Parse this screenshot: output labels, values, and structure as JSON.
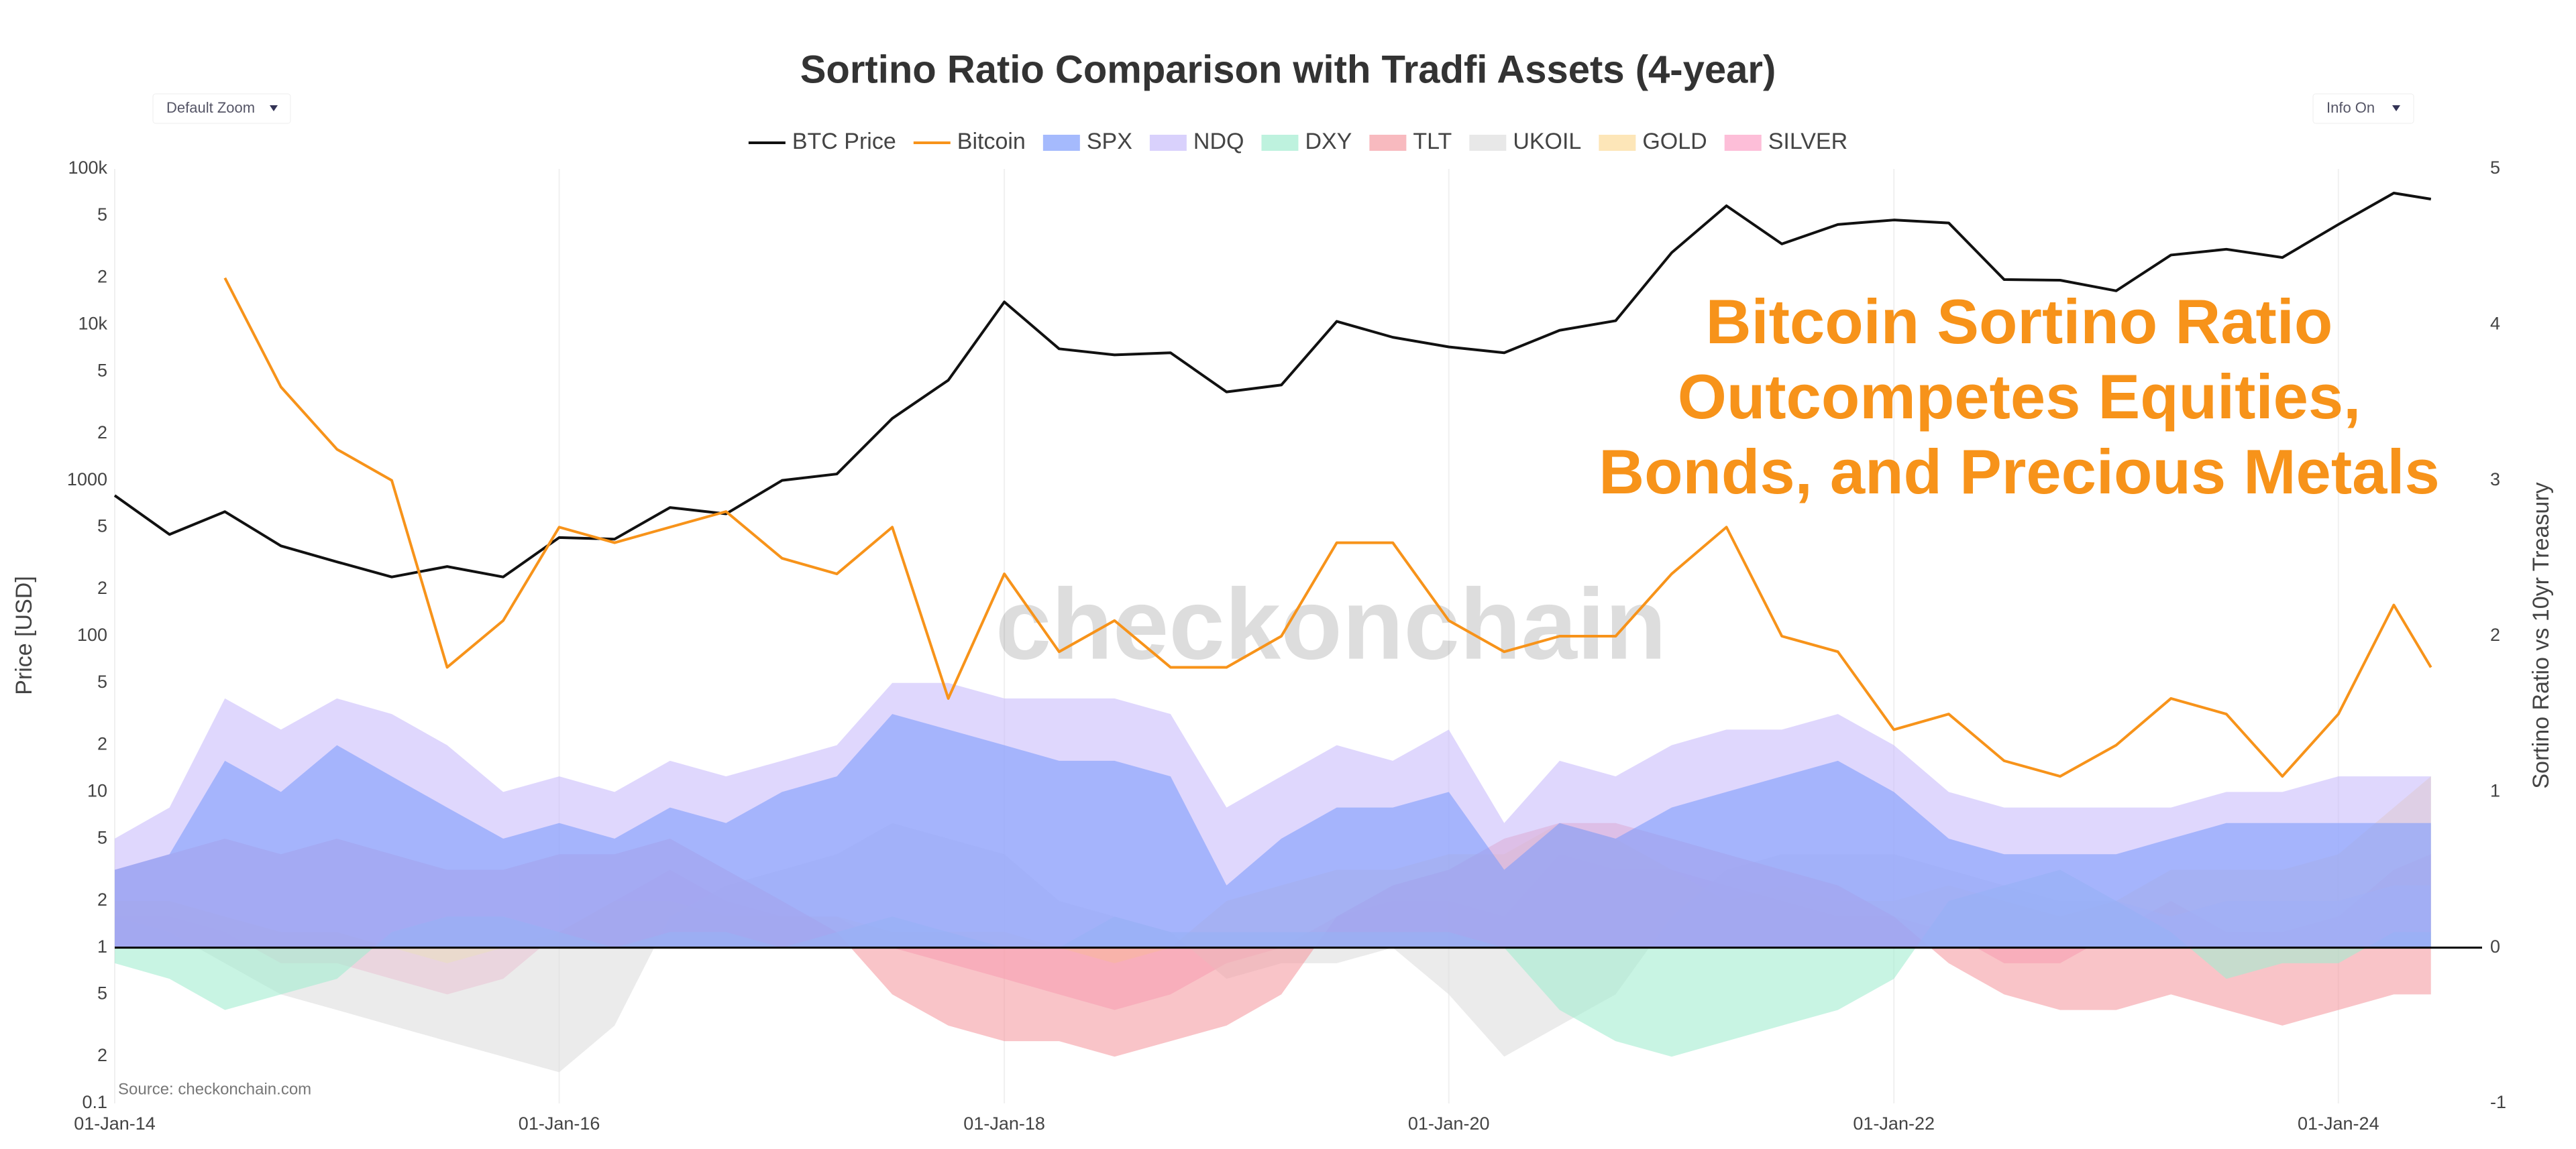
{
  "chart_data": {
    "type": "line",
    "title": "Sortino Ratio Comparison with Tradfi Assets (4-year)",
    "annotation": [
      "Bitcoin Sortino Ratio",
      "Outcompetes Equities,",
      "Bonds, and Precious Metals"
    ],
    "watermark": "checkonchain",
    "source": "Source: checkonchain.com",
    "zoom_button": "Default Zoom",
    "info_button": "Info On",
    "ylabel": "Price [USD]",
    "y2label": "Sortino Ratio vs 10yr Treasury",
    "ylog": true,
    "grid": true,
    "legend": "top",
    "x": [
      "2014-01-01",
      "2014-04-01",
      "2014-07-01",
      "2014-10-01",
      "2015-01-01",
      "2015-04-01",
      "2015-07-01",
      "2015-10-01",
      "2016-01-01",
      "2016-04-01",
      "2016-07-01",
      "2016-10-01",
      "2017-01-01",
      "2017-04-01",
      "2017-07-01",
      "2017-10-01",
      "2018-01-01",
      "2018-04-01",
      "2018-07-01",
      "2018-10-01",
      "2019-01-01",
      "2019-04-01",
      "2019-07-01",
      "2019-10-01",
      "2020-01-01",
      "2020-04-01",
      "2020-07-01",
      "2020-10-01",
      "2021-01-01",
      "2021-04-01",
      "2021-07-01",
      "2021-10-01",
      "2022-01-01",
      "2022-04-01",
      "2022-07-01",
      "2022-10-01",
      "2023-01-01",
      "2023-04-01",
      "2023-07-01",
      "2023-10-01",
      "2024-01-01",
      "2024-04-01",
      "2024-06-01"
    ],
    "xlim": [
      "2014-01-01",
      "2024-07-01"
    ],
    "xticks": [
      {
        "value": "2014-01-01",
        "label": "01-Jan-14"
      },
      {
        "value": "2016-01-01",
        "label": "01-Jan-16"
      },
      {
        "value": "2018-01-01",
        "label": "01-Jan-18"
      },
      {
        "value": "2020-01-01",
        "label": "01-Jan-20"
      },
      {
        "value": "2022-01-01",
        "label": "01-Jan-22"
      },
      {
        "value": "2024-01-01",
        "label": "01-Jan-24"
      }
    ],
    "ylim": [
      0.1,
      100000
    ],
    "yticks": [
      {
        "value": 100000,
        "label": "100k"
      },
      {
        "value": 50000,
        "label": "5"
      },
      {
        "value": 20000,
        "label": "2"
      },
      {
        "value": 10000,
        "label": "10k"
      },
      {
        "value": 5000,
        "label": "5"
      },
      {
        "value": 2000,
        "label": "2"
      },
      1000,
      {
        "value": 500,
        "label": "5"
      },
      {
        "value": 200,
        "label": "2"
      },
      100,
      {
        "value": 50,
        "label": "5"
      },
      {
        "value": 20,
        "label": "2"
      },
      10,
      {
        "value": 5,
        "label": "5"
      },
      {
        "value": 2,
        "label": "2"
      },
      1,
      {
        "value": 0.5,
        "label": "5"
      },
      {
        "value": 0.2,
        "label": "2"
      },
      0.1
    ],
    "y2lim": [
      -1,
      5
    ],
    "y2ticks": [
      -1,
      0,
      1,
      2,
      3,
      4,
      5
    ],
    "series": [
      {
        "name": "BTC Price",
        "type": "line",
        "axis": "y",
        "color": "#111111",
        "values": [
          800,
          450,
          630,
          380,
          300,
          240,
          280,
          240,
          430,
          420,
          670,
          610,
          1000,
          1100,
          2500,
          4400,
          14000,
          7000,
          6400,
          6600,
          3700,
          4100,
          10500,
          8300,
          7200,
          6600,
          9200,
          10600,
          29000,
          58000,
          33000,
          44000,
          47000,
          45000,
          19500,
          19300,
          16500,
          28000,
          30500,
          27000,
          44000,
          70000,
          64000
        ]
      },
      {
        "name": "Bitcoin",
        "type": "line",
        "axis": "y2",
        "color": "#f7931a",
        "values": [
          null,
          null,
          4.3,
          3.6,
          3.2,
          3.0,
          1.8,
          2.1,
          2.7,
          2.6,
          2.7,
          2.8,
          2.5,
          2.4,
          2.7,
          1.6,
          2.4,
          1.9,
          2.1,
          1.8,
          1.8,
          2.0,
          2.6,
          2.6,
          2.1,
          1.9,
          2.0,
          2.0,
          2.4,
          2.7,
          2.0,
          1.9,
          1.4,
          1.5,
          1.2,
          1.1,
          1.3,
          1.6,
          1.5,
          1.1,
          1.5,
          2.2,
          1.8
        ]
      },
      {
        "name": "SPX",
        "type": "area",
        "axis": "y2",
        "color": "#7f9dfc",
        "values": [
          0.5,
          0.6,
          1.2,
          1.0,
          1.3,
          1.1,
          0.9,
          0.7,
          0.8,
          0.7,
          0.9,
          0.8,
          1.0,
          1.1,
          1.5,
          1.4,
          1.3,
          1.2,
          1.2,
          1.1,
          0.4,
          0.7,
          0.9,
          0.9,
          1.0,
          0.5,
          0.8,
          0.7,
          0.9,
          1.0,
          1.1,
          1.2,
          1.0,
          0.7,
          0.6,
          0.6,
          0.6,
          0.7,
          0.8,
          0.8,
          0.8,
          0.8,
          0.8
        ]
      },
      {
        "name": "NDQ",
        "type": "area",
        "axis": "y2",
        "color": "#c9bdfb",
        "values": [
          0.7,
          0.9,
          1.6,
          1.4,
          1.6,
          1.5,
          1.3,
          1.0,
          1.1,
          1.0,
          1.2,
          1.1,
          1.2,
          1.3,
          1.7,
          1.7,
          1.6,
          1.6,
          1.6,
          1.5,
          0.9,
          1.1,
          1.3,
          1.2,
          1.4,
          0.8,
          1.2,
          1.1,
          1.3,
          1.4,
          1.4,
          1.5,
          1.3,
          1.0,
          0.9,
          0.9,
          0.9,
          0.9,
          1.0,
          1.0,
          1.1,
          1.1,
          1.1
        ]
      },
      {
        "name": "DXY",
        "type": "area",
        "axis": "y2",
        "color": "#a3ecd0",
        "values": [
          -0.1,
          -0.2,
          -0.4,
          -0.3,
          -0.2,
          0.1,
          0.2,
          0.2,
          0.1,
          0.0,
          0.1,
          0.1,
          0.0,
          0.1,
          0.2,
          0.1,
          0.0,
          0.0,
          0.2,
          0.1,
          0.1,
          0.1,
          0.1,
          0.1,
          0.1,
          0.0,
          -0.4,
          -0.6,
          -0.7,
          -0.6,
          -0.5,
          -0.4,
          -0.2,
          0.3,
          0.4,
          0.5,
          0.3,
          0.1,
          -0.2,
          -0.1,
          -0.1,
          0.1,
          0.1
        ]
      },
      {
        "name": "TLT",
        "type": "area",
        "axis": "y2",
        "color": "#f59ca4",
        "values": [
          0.5,
          0.6,
          0.7,
          0.6,
          0.7,
          0.6,
          0.5,
          0.5,
          0.6,
          0.6,
          0.7,
          0.5,
          0.3,
          0.1,
          -0.3,
          -0.5,
          -0.6,
          -0.6,
          -0.7,
          -0.6,
          -0.5,
          -0.3,
          0.2,
          0.4,
          0.5,
          0.7,
          0.8,
          0.8,
          0.7,
          0.6,
          0.5,
          0.4,
          0.2,
          -0.1,
          -0.3,
          -0.4,
          -0.4,
          -0.3,
          -0.4,
          -0.5,
          -0.4,
          -0.3,
          -0.3
        ]
      },
      {
        "name": "UKOIL",
        "type": "area",
        "axis": "y2",
        "color": "#dedede",
        "values": [
          0.2,
          0.1,
          -0.1,
          -0.3,
          -0.4,
          -0.5,
          -0.6,
          -0.7,
          -0.8,
          -0.5,
          0.2,
          0.4,
          0.5,
          0.6,
          0.8,
          0.7,
          0.6,
          0.3,
          0.2,
          0.1,
          -0.2,
          -0.1,
          -0.1,
          0.0,
          -0.3,
          -0.7,
          -0.5,
          -0.3,
          0.2,
          0.5,
          0.6,
          0.6,
          0.6,
          0.5,
          0.4,
          0.3,
          0.3,
          0.2,
          0.3,
          0.3,
          0.3,
          0.4,
          0.4
        ]
      },
      {
        "name": "GOLD",
        "type": "area",
        "axis": "y2",
        "color": "#fcdc9a",
        "values": [
          0.3,
          0.3,
          0.2,
          0.1,
          0.1,
          0.0,
          -0.1,
          0.0,
          0.1,
          0.3,
          0.3,
          0.2,
          0.2,
          0.2,
          0.1,
          0.1,
          0.1,
          0.0,
          -0.1,
          0.0,
          0.3,
          0.4,
          0.5,
          0.5,
          0.6,
          0.6,
          0.8,
          0.7,
          0.5,
          0.3,
          0.4,
          0.3,
          0.3,
          0.4,
          0.3,
          0.2,
          0.3,
          0.5,
          0.5,
          0.5,
          0.6,
          0.9,
          1.1
        ]
      },
      {
        "name": "SILVER",
        "type": "area",
        "axis": "y2",
        "color": "#fca3c8",
        "values": [
          0.2,
          0.2,
          0.1,
          -0.1,
          -0.1,
          -0.2,
          -0.3,
          -0.2,
          0.1,
          0.3,
          0.5,
          0.3,
          0.2,
          0.2,
          0.0,
          -0.1,
          -0.2,
          -0.3,
          -0.4,
          -0.3,
          -0.1,
          0.0,
          0.2,
          0.3,
          0.3,
          0.2,
          0.6,
          0.5,
          0.5,
          0.4,
          0.3,
          0.2,
          0.2,
          0.1,
          -0.1,
          -0.1,
          0.1,
          0.3,
          0.1,
          0.1,
          0.2,
          0.5,
          0.6
        ]
      }
    ]
  }
}
